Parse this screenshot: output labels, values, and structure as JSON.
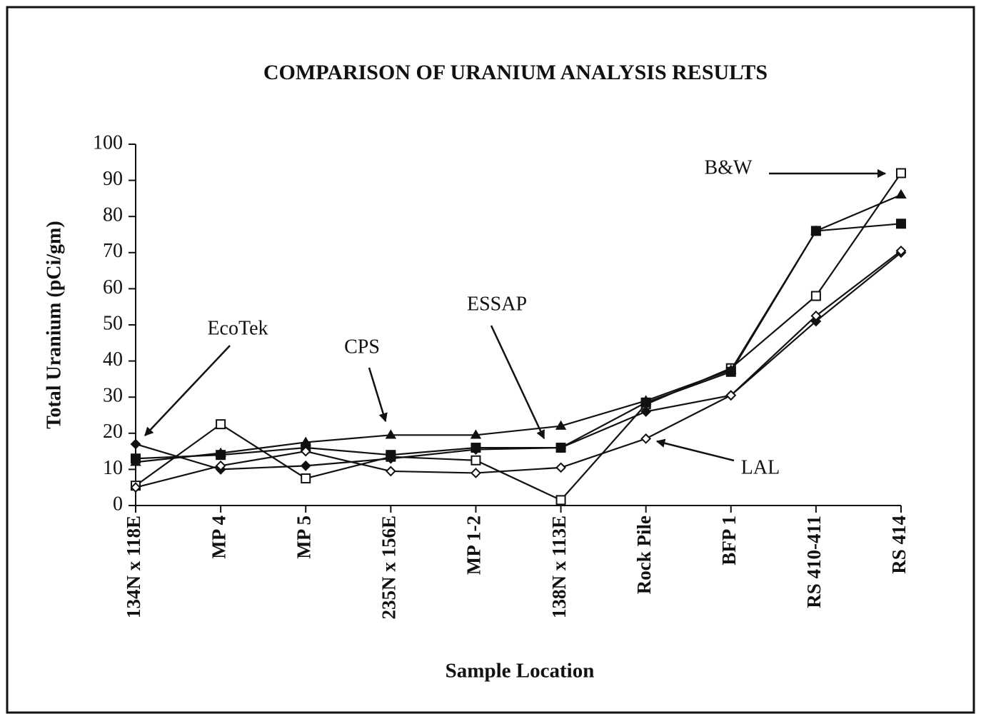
{
  "chart_data": {
    "type": "line",
    "title": "COMPARISON OF URANIUM ANALYSIS RESULTS",
    "xlabel": "Sample Location",
    "ylabel": "Total Uranium (pCi/gm)",
    "categories": [
      "134N x 118E",
      "MP 4",
      "MP 5",
      "235N x 156E",
      "MP 1-2",
      "138N x 113E",
      "Rock Pile",
      "BFP 1",
      "RS 410-411",
      "RS 414"
    ],
    "ylim": [
      0,
      100
    ],
    "yticks": [
      0,
      10,
      20,
      30,
      40,
      50,
      60,
      70,
      80,
      90,
      100
    ],
    "grid": false,
    "series": [
      {
        "name": "B&W",
        "color": "#111111",
        "marker": "square-open",
        "values": [
          5.5,
          22.5,
          7.5,
          13.5,
          12.5,
          1.5,
          28,
          38,
          58,
          92
        ]
      },
      {
        "name": "ESSAP",
        "color": "#111111",
        "marker": "square-filled",
        "values": [
          13,
          14,
          16,
          14,
          16,
          16,
          28.5,
          37,
          76,
          78
        ]
      },
      {
        "name": "CPS",
        "color": "#111111",
        "marker": "triangle-filled",
        "values": [
          12,
          14.5,
          17.5,
          19.5,
          19.5,
          22,
          29,
          37.5,
          76,
          86
        ]
      },
      {
        "name": "EcoTek",
        "color": "#111111",
        "marker": "diamond-filled",
        "values": [
          17,
          10,
          11,
          13,
          15.5,
          16,
          26,
          30.5,
          51,
          70
        ]
      },
      {
        "name": "LAL",
        "color": "#111111",
        "marker": "diamond-open",
        "values": [
          5,
          11,
          15,
          9.5,
          9,
          10.5,
          18.5,
          30.5,
          52.5,
          70.5
        ]
      }
    ]
  }
}
